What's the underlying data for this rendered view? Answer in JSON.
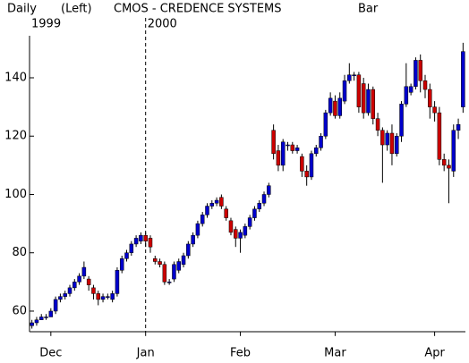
{
  "chart_data": {
    "type": "candlestick",
    "header": [
      "Daily",
      "(Left)",
      "CMOS - CREDENCE SYSTEMS",
      "Bar"
    ],
    "year_labels": [
      "1999",
      "2000"
    ],
    "year_break_category": "Jan",
    "categories": [
      null,
      null,
      null,
      null,
      "Dec",
      null,
      null,
      null,
      null,
      null,
      null,
      null,
      null,
      null,
      null,
      null,
      null,
      null,
      null,
      null,
      null,
      null,
      null,
      null,
      "Jan",
      null,
      null,
      null,
      null,
      null,
      null,
      null,
      null,
      null,
      null,
      null,
      null,
      null,
      null,
      null,
      null,
      null,
      null,
      null,
      "Feb",
      null,
      null,
      null,
      null,
      null,
      null,
      null,
      null,
      null,
      null,
      null,
      null,
      null,
      null,
      null,
      null,
      null,
      null,
      null,
      "Mar",
      null,
      null,
      null,
      null,
      null,
      null,
      null,
      null,
      null,
      null,
      null,
      null,
      null,
      null,
      null,
      null,
      null,
      null,
      null,
      null,
      "Apr",
      null,
      null,
      null,
      null,
      null,
      null
    ],
    "open": [
      55,
      56,
      57,
      58,
      58,
      60,
      64,
      65,
      66,
      68,
      70,
      72,
      71,
      68,
      66,
      64,
      65,
      64,
      66,
      74,
      78,
      80,
      83,
      84,
      86,
      85,
      78,
      77,
      76,
      70,
      71,
      74,
      76,
      79,
      83,
      86,
      90,
      93,
      96,
      97,
      99,
      95,
      91,
      88,
      85,
      86,
      89,
      92,
      95,
      97,
      100,
      122,
      115,
      110,
      117,
      117,
      115,
      113,
      108,
      106,
      114,
      116,
      120,
      128,
      132,
      127,
      132,
      139,
      141,
      141,
      138,
      128,
      136,
      126,
      122,
      117,
      121,
      114,
      120,
      131,
      135,
      137,
      146,
      139,
      136,
      130,
      128,
      112,
      110,
      108,
      122,
      130
    ],
    "high": [
      57,
      58,
      59,
      59,
      61,
      65,
      66,
      67,
      69,
      71,
      73,
      77,
      72,
      69,
      67,
      66,
      66,
      67,
      75,
      79,
      81,
      84,
      86,
      87,
      87,
      86,
      79,
      78,
      77,
      71,
      77,
      78,
      80,
      84,
      87,
      91,
      94,
      97,
      98,
      99,
      100,
      96,
      92,
      89,
      88,
      90,
      93,
      96,
      98,
      101,
      104,
      124,
      117,
      119,
      118,
      118,
      117,
      114,
      110,
      115,
      117,
      121,
      129,
      135,
      134,
      135,
      141,
      145,
      142,
      142,
      140,
      138,
      137,
      128,
      123,
      122,
      124,
      121,
      132,
      145,
      138,
      147,
      148,
      141,
      138,
      132,
      130,
      114,
      112,
      124,
      126,
      152
    ],
    "low": [
      54,
      55,
      57,
      57,
      58,
      59,
      63,
      64,
      65,
      67,
      69,
      71,
      67,
      64,
      62,
      63,
      64,
      63,
      65,
      73,
      77,
      79,
      82,
      83,
      82,
      80,
      76,
      75,
      69,
      69,
      70,
      73,
      75,
      78,
      82,
      85,
      89,
      92,
      95,
      96,
      95,
      91,
      86,
      82,
      80,
      85,
      88,
      91,
      94,
      96,
      99,
      112,
      108,
      108,
      115,
      114,
      114,
      106,
      103,
      105,
      113,
      115,
      119,
      127,
      126,
      126,
      131,
      138,
      139,
      128,
      126,
      127,
      124,
      120,
      104,
      115,
      110,
      113,
      118,
      130,
      134,
      136,
      135,
      133,
      126,
      125,
      110,
      108,
      97,
      106,
      119,
      128
    ],
    "close": [
      56,
      57,
      58,
      58,
      60,
      64,
      65,
      66,
      68,
      70,
      72,
      75,
      69,
      66,
      64,
      65,
      65,
      66,
      74,
      78,
      80,
      83,
      85,
      86,
      84,
      82,
      77,
      76,
      70,
      70,
      76,
      77,
      79,
      83,
      86,
      90,
      93,
      96,
      97,
      98,
      96,
      92,
      87,
      85,
      87,
      89,
      92,
      95,
      97,
      100,
      103,
      114,
      110,
      118,
      117,
      115,
      116,
      108,
      106,
      114,
      116,
      120,
      128,
      133,
      127,
      133,
      139,
      141,
      141,
      130,
      128,
      136,
      126,
      122,
      117,
      121,
      114,
      120,
      131,
      137,
      137,
      146,
      139,
      136,
      130,
      128,
      112,
      110,
      109,
      122,
      124,
      149
    ],
    "up_color": "#0000cc",
    "down_color": "#cc0000",
    "ylim": [
      53,
      153
    ],
    "yticks": [
      60,
      80,
      100,
      120,
      140
    ]
  }
}
